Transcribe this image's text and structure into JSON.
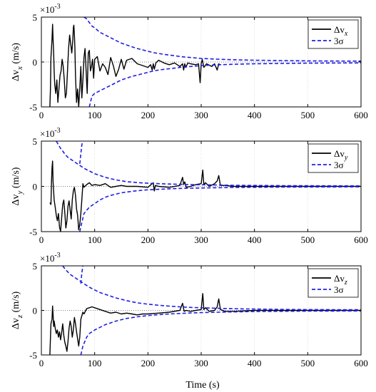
{
  "chart_data": [
    {
      "type": "line",
      "ylabel": "Δv_x (m/s)",
      "ylabel_main": "Δv",
      "ylabel_sub": "x",
      "ylabel_unit": "(m/s)",
      "exponent_label": "×10",
      "exponent_power": "-3",
      "xlim": [
        0,
        600
      ],
      "ylim": [
        -5,
        5
      ],
      "x_ticks": [
        "0",
        "100",
        "200",
        "300",
        "400",
        "500",
        "600"
      ],
      "y_ticks": [
        "-5",
        "0",
        "5"
      ],
      "grid": true,
      "legend_position": "top-right",
      "legend": [
        {
          "label_main": "Δv",
          "label_sub": "x",
          "color": "#000000",
          "style": "solid"
        },
        {
          "label_main": "3σ",
          "label_sub": "",
          "color": "#1f1fe6",
          "style": "dashed"
        }
      ],
      "series": [
        {
          "name": "Δv_x",
          "color": "#000000",
          "style": "solid",
          "x": [
            16,
            17,
            18,
            20,
            21,
            22,
            23,
            24,
            25,
            27,
            29,
            31,
            33,
            35,
            37,
            39,
            41,
            43,
            45,
            47,
            49,
            51,
            53,
            55,
            57,
            59,
            60,
            61,
            62,
            63,
            64,
            66,
            68,
            70,
            72,
            74,
            76,
            78,
            80,
            82,
            84,
            86,
            88,
            90,
            92,
            94,
            96,
            98,
            100,
            105,
            110,
            115,
            120,
            125,
            130,
            135,
            140,
            145,
            150,
            155,
            160,
            170,
            180,
            190,
            200,
            205,
            208,
            210,
            212,
            215,
            220,
            230,
            240,
            250,
            260,
            265,
            267,
            269,
            271,
            275,
            280,
            290,
            295,
            298,
            300,
            302,
            305,
            310,
            320,
            325,
            330,
            333,
            335
          ],
          "y": [
            -5,
            -3,
            0.5,
            2.5,
            4.2,
            2.5,
            1.0,
            -1.0,
            -2.5,
            -3.5,
            -2,
            -4.5,
            -3.0,
            -1.5,
            -1.0,
            0.3,
            -0.5,
            -2.0,
            -4.0,
            -3.5,
            -1.0,
            1.5,
            3.0,
            2.0,
            1.0,
            2.5,
            3.8,
            4.1,
            3.0,
            1.5,
            -1.5,
            -4.5,
            -3.0,
            -5,
            -3.0,
            -0.5,
            -4.0,
            -2.0,
            0.5,
            1.5,
            -1.0,
            -3.5,
            1.0,
            1.3,
            -1.0,
            -0.5,
            0.3,
            -1.8,
            0.3,
            0.6,
            -1.0,
            -0.2,
            -0.6,
            -1.4,
            0.5,
            -0.4,
            -1.6,
            -0.8,
            0.3,
            -0.8,
            0.2,
            0.4,
            -0.2,
            -0.4,
            -0.6,
            -0.3,
            -0.9,
            -0.2,
            -0.8,
            -0.1,
            0.2,
            -0.1,
            -0.3,
            -0.1,
            -0.5,
            -0.2,
            -0.9,
            -0.2,
            -0.6,
            -0.1,
            -0.2,
            -0.3,
            -0.2,
            -2.3,
            -0.2,
            0.3,
            -0.6,
            -0.2,
            -0.5,
            -0.2,
            -0.9,
            -0.2,
            -0.3
          ]
        },
        {
          "name": "3σ",
          "color": "#1f1fe6",
          "style": "dashed",
          "x": [
            80,
            85,
            90,
            95,
            100,
            110,
            120,
            130,
            140,
            150,
            160,
            170,
            180,
            190,
            200,
            210,
            220,
            230,
            240,
            250,
            260,
            270,
            280,
            290,
            300,
            320,
            340,
            360,
            380,
            400,
            450,
            500,
            550,
            600
          ],
          "y": [
            5.0,
            4.8,
            4.4,
            4.0,
            3.8,
            3.3,
            3.0,
            2.7,
            2.4,
            2.1,
            1.9,
            1.7,
            1.5,
            1.35,
            1.2,
            1.05,
            0.95,
            0.85,
            0.78,
            0.7,
            0.62,
            0.55,
            0.5,
            0.45,
            0.4,
            0.34,
            0.29,
            0.25,
            0.22,
            0.2,
            0.16,
            0.13,
            0.11,
            0.1
          ]
        },
        {
          "name": "-3σ",
          "color": "#1f1fe6",
          "style": "dashed",
          "x": [
            90,
            95,
            100,
            110,
            120,
            130,
            140,
            150,
            160,
            170,
            180,
            190,
            200,
            210,
            220,
            230,
            240,
            250,
            260,
            270,
            280,
            290,
            300,
            320,
            340,
            360,
            380,
            400,
            450,
            500,
            550,
            600
          ],
          "y": [
            -5.0,
            -3.8,
            -3.5,
            -3.2,
            -2.9,
            -2.6,
            -2.3,
            -2.0,
            -1.8,
            -1.6,
            -1.45,
            -1.3,
            -1.15,
            -1.0,
            -0.9,
            -0.82,
            -0.75,
            -0.68,
            -0.6,
            -0.55,
            -0.5,
            -0.45,
            -0.4,
            -0.34,
            -0.29,
            -0.25,
            -0.22,
            -0.2,
            -0.16,
            -0.13,
            -0.11,
            -0.1
          ]
        }
      ]
    },
    {
      "type": "line",
      "ylabel": "Δv_y (m/s)",
      "ylabel_main": "Δv",
      "ylabel_sub": "y",
      "ylabel_unit": "(m/s)",
      "exponent_label": "×10",
      "exponent_power": "-3",
      "xlim": [
        0,
        600
      ],
      "ylim": [
        -5,
        5
      ],
      "x_ticks": [
        "0",
        "100",
        "200",
        "300",
        "400",
        "500",
        "600"
      ],
      "y_ticks": [
        "-5",
        "0",
        "5"
      ],
      "grid": true,
      "legend_position": "top-right",
      "legend": [
        {
          "label_main": "Δv",
          "label_sub": "y",
          "color": "#000000",
          "style": "solid"
        },
        {
          "label_main": "3σ",
          "label_sub": "",
          "color": "#1f1fe6",
          "style": "dashed"
        }
      ],
      "series": [
        {
          "name": "Δv_y",
          "color": "#000000",
          "style": "solid",
          "x": [
            16,
            18,
            19,
            20,
            21,
            22,
            24,
            26,
            28,
            30,
            32,
            34,
            36,
            38,
            40,
            42,
            44,
            46,
            48,
            50,
            52,
            54,
            56,
            58,
            60,
            62,
            64,
            66,
            68,
            70,
            72,
            74,
            76,
            78,
            80,
            85,
            90,
            95,
            100,
            110,
            120,
            130,
            140,
            150,
            160,
            180,
            200,
            210,
            212,
            214,
            220,
            240,
            260,
            265,
            267,
            269,
            272,
            280,
            290,
            300,
            303,
            305,
            308,
            315,
            325,
            330,
            333,
            336,
            345,
            360,
            400,
            450,
            500,
            550,
            600
          ],
          "y": [
            -1.8,
            -2.0,
            0.5,
            2.0,
            2.8,
            0.5,
            -1.5,
            -2.3,
            -3.2,
            -3.8,
            -3.0,
            -4.5,
            -5,
            -3.5,
            -2.0,
            -1.5,
            -3.0,
            -4.6,
            -3.8,
            -2.2,
            -1.6,
            -2.6,
            -3.6,
            -1.5,
            -0.5,
            -0.1,
            -1.0,
            -2.5,
            -3.2,
            -4.8,
            -4.2,
            -3.0,
            -1.5,
            0.3,
            -0.1,
            0.2,
            0.4,
            0.1,
            0.2,
            0.1,
            0.3,
            -0.1,
            0.0,
            0.1,
            0.0,
            0.0,
            -0.1,
            0.4,
            -0.5,
            0.1,
            0.0,
            -0.1,
            0.1,
            1.0,
            0.2,
            0.5,
            -0.1,
            0.0,
            0.2,
            0.3,
            1.8,
            0.2,
            0.4,
            0.0,
            0.3,
            0.6,
            1.2,
            0.1,
            0.1,
            0.0,
            0.0,
            0.0,
            0.0,
            0.0,
            0.0
          ]
        },
        {
          "name": "3σ",
          "color": "#1f1fe6",
          "style": "dashed",
          "x": [
            28,
            32,
            36,
            40,
            45,
            50,
            55,
            60,
            65,
            70,
            80,
            90,
            100,
            110,
            120,
            130,
            140,
            150,
            160,
            180,
            200,
            220,
            240,
            260,
            280,
            300,
            320,
            340,
            360,
            380,
            400,
            450,
            500,
            550,
            600
          ],
          "y": [
            5.0,
            4.6,
            4.2,
            3.9,
            3.5,
            3.2,
            3.0,
            2.8,
            2.6,
            2.4,
            2.0,
            1.7,
            1.4,
            1.2,
            1.0,
            0.85,
            0.72,
            0.62,
            0.52,
            0.42,
            0.35,
            0.3,
            0.26,
            0.23,
            0.2,
            0.18,
            0.16,
            0.14,
            0.12,
            0.11,
            0.1,
            0.08,
            0.07,
            0.06,
            0.05
          ]
        },
        {
          "name": "3σ-spike",
          "color": "#1f1fe6",
          "style": "dashed",
          "x": [
            72,
            74,
            76,
            78
          ],
          "y": [
            2.5,
            3.6,
            4.6,
            5.0
          ]
        },
        {
          "name": "-3σ",
          "color": "#1f1fe6",
          "style": "dashed",
          "x": [
            72,
            76,
            80,
            90,
            100,
            110,
            120,
            130,
            140,
            150,
            160,
            180,
            200,
            220,
            240,
            260,
            280,
            300,
            320,
            340,
            360,
            380,
            400,
            450,
            500,
            550,
            600
          ],
          "y": [
            -5.0,
            -4.0,
            -3.0,
            -2.3,
            -1.9,
            -1.5,
            -1.2,
            -1.0,
            -0.85,
            -0.72,
            -0.62,
            -0.48,
            -0.38,
            -0.32,
            -0.27,
            -0.23,
            -0.2,
            -0.18,
            -0.16,
            -0.14,
            -0.12,
            -0.11,
            -0.1,
            -0.08,
            -0.07,
            -0.06,
            -0.05
          ]
        }
      ]
    },
    {
      "type": "line",
      "ylabel": "Δv_z (m/s)",
      "ylabel_main": "Δv",
      "ylabel_sub": "z",
      "ylabel_unit": "(m/s)",
      "exponent_label": "×10",
      "exponent_power": "-3",
      "xlabel": "Time (s)",
      "xlim": [
        0,
        600
      ],
      "ylim": [
        -5,
        5
      ],
      "x_ticks": [
        "0",
        "100",
        "200",
        "300",
        "400",
        "500",
        "600"
      ],
      "y_ticks": [
        "-5",
        "0",
        "5"
      ],
      "grid": true,
      "legend_position": "top-right",
      "legend": [
        {
          "label_main": "Δv",
          "label_sub": "z",
          "color": "#000000",
          "style": "solid"
        },
        {
          "label_main": "3σ",
          "label_sub": "",
          "color": "#1f1fe6",
          "style": "dashed"
        }
      ],
      "series": [
        {
          "name": "Δv_z",
          "color": "#000000",
          "style": "solid",
          "x": [
            16,
            18,
            20,
            21,
            22,
            23,
            24,
            26,
            28,
            30,
            32,
            34,
            36,
            38,
            40,
            42,
            44,
            46,
            48,
            50,
            52,
            54,
            56,
            58,
            60,
            62,
            64,
            66,
            68,
            70,
            72,
            74,
            76,
            78,
            80,
            85,
            90,
            95,
            100,
            110,
            120,
            130,
            140,
            150,
            160,
            170,
            180,
            190,
            200,
            220,
            240,
            260,
            265,
            268,
            272,
            280,
            290,
            300,
            303,
            305,
            308,
            315,
            325,
            330,
            333,
            336,
            345,
            360,
            400,
            450,
            500,
            550,
            600
          ],
          "y": [
            -5,
            -1.5,
            -1.0,
            0.5,
            -0.5,
            -1.8,
            -1.2,
            -2.0,
            -2.6,
            -2.2,
            -3.0,
            -2.4,
            -3.3,
            -2.5,
            -1.5,
            -2.8,
            -3.6,
            -4.0,
            -4.6,
            -3.5,
            -2.0,
            -1.2,
            -1.8,
            -3.0,
            -2.2,
            -0.8,
            -1.5,
            -2.4,
            -3.2,
            -4.0,
            -3.0,
            -1.0,
            -0.6,
            -0.2,
            -0.4,
            0.2,
            0.3,
            0.4,
            0.3,
            0.1,
            -0.1,
            -0.3,
            -0.2,
            -0.4,
            -0.3,
            -0.4,
            -0.5,
            -0.4,
            -0.4,
            -0.3,
            -0.2,
            0.0,
            0.8,
            -0.1,
            0.0,
            -0.1,
            0.0,
            0.1,
            1.9,
            0.1,
            0.3,
            -0.1,
            0.0,
            0.4,
            1.3,
            0.1,
            -0.1,
            -0.1,
            0.0,
            0.0,
            0.0,
            0.0,
            0.0
          ]
        },
        {
          "name": "3σ",
          "color": "#1f1fe6",
          "style": "dashed",
          "x": [
            40,
            45,
            50,
            55,
            60,
            65,
            70,
            80,
            90,
            100,
            110,
            120,
            130,
            140,
            150,
            160,
            180,
            200,
            220,
            240,
            260,
            280,
            300,
            320,
            340,
            360,
            380,
            400,
            450,
            500,
            550,
            600
          ],
          "y": [
            5.0,
            4.6,
            4.3,
            4.0,
            3.8,
            3.6,
            3.4,
            3.0,
            2.6,
            2.3,
            2.0,
            1.8,
            1.6,
            1.4,
            1.25,
            1.1,
            0.85,
            0.7,
            0.58,
            0.48,
            0.4,
            0.34,
            0.3,
            0.26,
            0.22,
            0.19,
            0.17,
            0.15,
            0.11,
            0.09,
            0.08,
            0.07
          ]
        },
        {
          "name": "3σ-spike",
          "color": "#1f1fe6",
          "style": "dashed",
          "x": [
            74,
            76,
            78
          ],
          "y": [
            3.0,
            4.2,
            5.0
          ]
        },
        {
          "name": "-3σ",
          "color": "#1f1fe6",
          "style": "dashed",
          "x": [
            74,
            78,
            85,
            90,
            100,
            110,
            120,
            130,
            140,
            150,
            160,
            180,
            200,
            220,
            240,
            260,
            280,
            300,
            320,
            340,
            360,
            380,
            400,
            450,
            500,
            550,
            600
          ],
          "y": [
            -5.0,
            -4.0,
            -3.0,
            -2.6,
            -2.2,
            -1.9,
            -1.6,
            -1.4,
            -1.2,
            -1.05,
            -0.9,
            -0.72,
            -0.58,
            -0.48,
            -0.4,
            -0.34,
            -0.29,
            -0.25,
            -0.22,
            -0.19,
            -0.17,
            -0.15,
            -0.13,
            -0.1,
            -0.08,
            -0.07,
            -0.06
          ]
        }
      ]
    }
  ]
}
